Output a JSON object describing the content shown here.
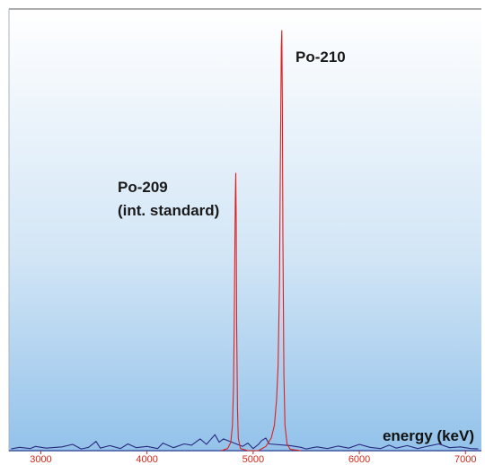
{
  "chart_data": {
    "type": "line",
    "title": "",
    "xlabel": "energy (keV)",
    "ylabel": "",
    "xlim": [
      2700,
      7150
    ],
    "ylim": [
      0,
      100
    ],
    "x_ticks": [
      3000,
      4000,
      5000,
      6000,
      7000
    ],
    "tick_labels": [
      "3000",
      "4000",
      "5000",
      "6000",
      "7000"
    ],
    "grid": false,
    "annotations": [
      {
        "id": "po210",
        "lines": [
          "Po-210"
        ],
        "x": 5270,
        "y": 100
      },
      {
        "id": "po209",
        "lines": [
          "Po-209",
          "(int. standard)"
        ],
        "x": 4830,
        "y": 66
      }
    ],
    "series": [
      {
        "color": "#e02020",
        "role": "peaks",
        "x": [
          4700,
          4760,
          4790,
          4805,
          4815,
          4822,
          4828,
          4832,
          4836,
          4840,
          4845,
          4852,
          4860,
          4880,
          4950,
          5050,
          5120,
          5170,
          5200,
          5220,
          5235,
          5248,
          5258,
          5265,
          5270,
          5275,
          5280,
          5290,
          5300,
          5320,
          5350,
          5450
        ],
        "y": [
          0,
          0.5,
          2,
          6,
          15,
          30,
          48,
          60,
          66,
          55,
          30,
          10,
          3,
          0.5,
          0,
          0,
          1,
          3,
          6,
          12,
          20,
          40,
          75,
          96,
          100,
          82,
          50,
          18,
          6,
          1.5,
          0.3,
          0
        ]
      },
      {
        "color": "#2a2a80",
        "role": "baseline",
        "x": [
          2720,
          2800,
          2900,
          2950,
          3050,
          3200,
          3300,
          3380,
          3450,
          3520,
          3560,
          3650,
          3750,
          3820,
          3900,
          4000,
          4100,
          4150,
          4250,
          4350,
          4420,
          4500,
          4560,
          4640,
          4680,
          4720,
          4900,
          4950,
          5000,
          5050,
          5080,
          5120,
          5150,
          5350,
          5450,
          5500,
          5600,
          5700,
          5800,
          5900,
          6000,
          6100,
          6200,
          6280,
          6350,
          6450,
          6550,
          6650,
          6750,
          6850,
          6950,
          7050,
          7120
        ],
        "y": [
          0.4,
          0.8,
          0.5,
          1,
          0.6,
          0.9,
          1.5,
          0.4,
          0.8,
          2.2,
          0.6,
          1.2,
          0.5,
          1.6,
          0.7,
          1,
          0.5,
          1.8,
          0.7,
          1.6,
          1.3,
          2.8,
          1.5,
          3.8,
          2,
          2.8,
          1,
          1.8,
          0.5,
          1.5,
          2.4,
          3,
          1.6,
          1.2,
          0.8,
          0.4,
          0.9,
          0.5,
          1.1,
          0.6,
          1.5,
          0.8,
          0.5,
          1.3,
          0.6,
          1.2,
          0.5,
          1.1,
          1.6,
          0.7,
          0.9,
          0.5,
          0.4
        ]
      }
    ]
  }
}
